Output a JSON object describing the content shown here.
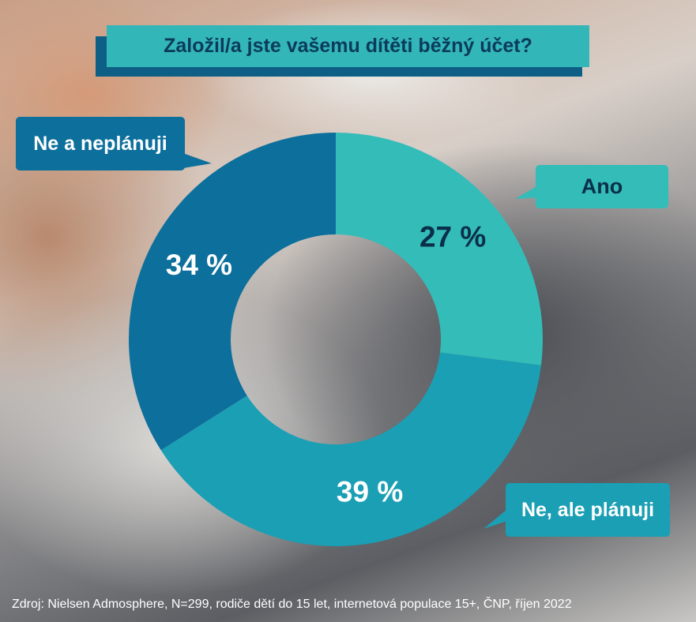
{
  "title": "Založil/a jste vašemu dítěti běžný účet?",
  "chart_data": {
    "type": "pie",
    "variant": "donut",
    "categories": [
      "Ano",
      "Ne, ale plánuji",
      "Ne a neplánuji"
    ],
    "values": [
      27,
      39,
      34
    ],
    "value_labels": [
      "27 %",
      "39 %",
      "34 %"
    ],
    "colors": [
      "#34bcb9",
      "#1a9fb4",
      "#0d6f9c"
    ],
    "label_colors": [
      "#0b2f4a",
      "#ffffff",
      "#ffffff"
    ]
  },
  "source": "Zdroj: Nielsen Admosphere, N=299, rodiče dětí do 15 let, internetová populace 15+, ČNP, říjen 2022"
}
